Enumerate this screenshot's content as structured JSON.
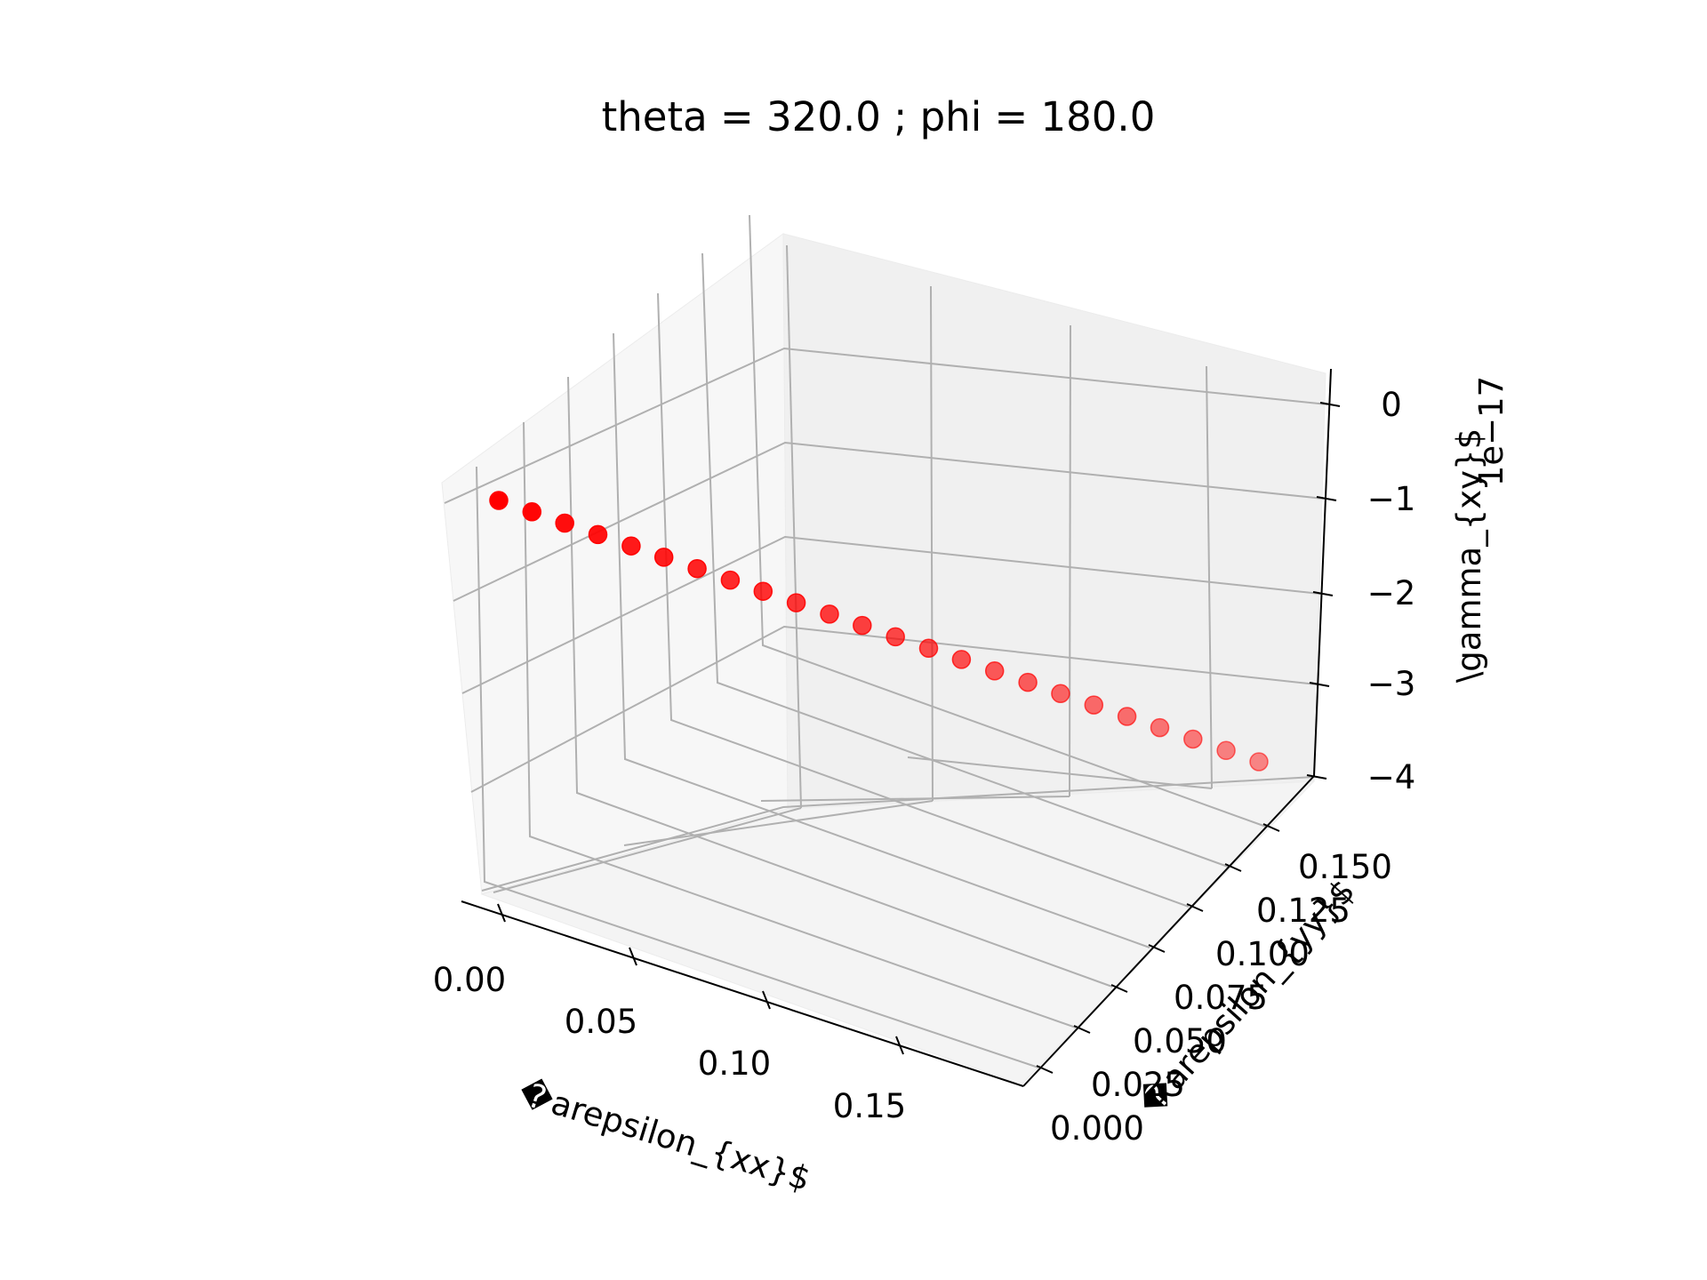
{
  "chart_data": {
    "type": "scatter",
    "title": "theta = 320.0 ; phi = 180.0",
    "xlabel": "�arepsilon_{xx}$",
    "ylabel": "�arepsilon_{yy}$",
    "zlabel": "\\gamma_{xy}$",
    "z_offset_text": "1e−17",
    "x_ticks": [
      "0.00",
      "0.05",
      "0.10",
      "0.15"
    ],
    "y_ticks": [
      "0.000",
      "0.025",
      "0.050",
      "0.075",
      "0.100",
      "0.125",
      "0.150"
    ],
    "z_ticks": [
      "−4",
      "−3",
      "−2",
      "−1",
      "0"
    ],
    "xlim": [
      -0.01,
      0.19
    ],
    "ylim": [
      -0.01,
      0.165
    ],
    "zlim": [
      -4.0,
      0.3
    ],
    "grid": true,
    "marker_color": "#ff0000",
    "series": [
      {
        "x": [
          0.0,
          0.0077,
          0.0153,
          0.023,
          0.0307,
          0.0383,
          0.046,
          0.0537,
          0.0613,
          0.069,
          0.0767,
          0.0843,
          0.092,
          0.0997,
          0.1073,
          0.115,
          0.1227,
          0.1303,
          0.138,
          0.1457,
          0.1533,
          0.161,
          0.1687,
          0.1763
        ],
        "y": [
          0.0,
          0.0067,
          0.0133,
          0.02,
          0.0267,
          0.0333,
          0.04,
          0.0467,
          0.0533,
          0.06,
          0.0667,
          0.0733,
          0.08,
          0.0867,
          0.0933,
          0.1,
          0.1067,
          0.1133,
          0.12,
          0.1267,
          0.1333,
          0.14,
          0.1467,
          0.1533
        ],
        "z": [
          -0.9,
          -0.9,
          -0.9,
          -0.9,
          -0.9,
          -0.9,
          -0.9,
          -0.9,
          -0.9,
          -0.9,
          -0.9,
          -0.9,
          -0.9,
          -0.9,
          -0.9,
          -0.9,
          -0.9,
          -0.9,
          -0.9,
          -0.9,
          -0.9,
          -0.9,
          -0.9,
          -0.9
        ]
      }
    ]
  }
}
